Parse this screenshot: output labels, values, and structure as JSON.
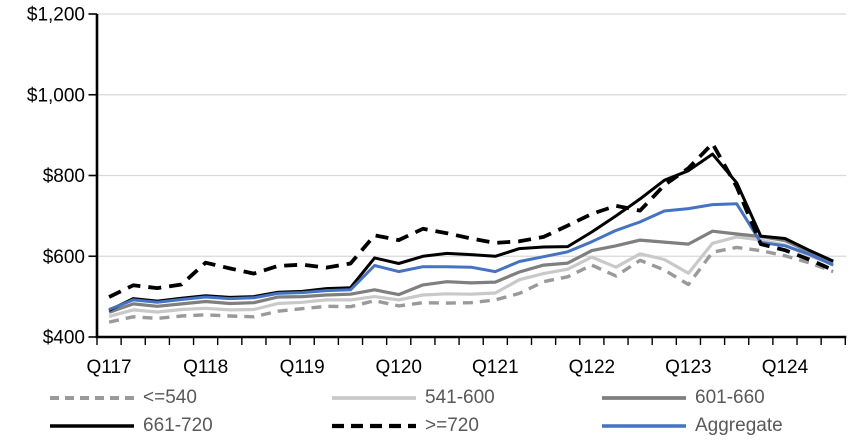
{
  "chart_data": {
    "type": "line",
    "title": "",
    "xlabel": "",
    "ylabel": "",
    "unit": "USD",
    "n_points": 31,
    "x_labels": [
      "Q117",
      "Q118",
      "Q119",
      "Q120",
      "Q121",
      "Q122",
      "Q123",
      "Q124"
    ],
    "x_label_positions": [
      0,
      4,
      8,
      12,
      16,
      20,
      24,
      28
    ],
    "y_axis": {
      "min": 400,
      "max": 1200,
      "tick_values": [
        400,
        600,
        800,
        1000,
        1200
      ],
      "tick_labels": [
        "$400",
        "$600",
        "$800",
        "$1,000",
        "$1,200"
      ]
    },
    "grid": "horizontal",
    "legend_position": "bottom",
    "draw_order": [
      0,
      1,
      2,
      3,
      5,
      4
    ],
    "series": [
      {
        "name": "<=540",
        "color": "#9a9a9a",
        "dash": "dashed",
        "width": 3.4,
        "values": [
          437,
          450,
          446,
          452,
          455,
          452,
          450,
          464,
          470,
          476,
          475,
          490,
          477,
          485,
          484,
          485,
          492,
          508,
          537,
          549,
          578,
          551,
          590,
          566,
          530,
          610,
          622,
          614,
          601,
          584,
          562
        ]
      },
      {
        "name": "541-600",
        "color": "#c9c9c9",
        "dash": "solid",
        "width": 3.2,
        "values": [
          451,
          467,
          462,
          468,
          471,
          467,
          468,
          483,
          486,
          492,
          492,
          500,
          492,
          504,
          507,
          506,
          509,
          542,
          557,
          568,
          598,
          573,
          606,
          592,
          558,
          632,
          648,
          640,
          628,
          601,
          581
        ]
      },
      {
        "name": "601-660",
        "color": "#7f7f7f",
        "dash": "solid",
        "width": 3.2,
        "values": [
          461,
          482,
          476,
          482,
          488,
          483,
          485,
          499,
          500,
          504,
          506,
          517,
          505,
          529,
          537,
          534,
          536,
          561,
          578,
          583,
          614,
          626,
          640,
          635,
          630,
          662,
          655,
          649,
          639,
          611,
          586
        ]
      },
      {
        "name": "661-720",
        "color": "#000000",
        "dash": "solid",
        "width": 3.0,
        "values": [
          466,
          495,
          489,
          496,
          502,
          498,
          500,
          511,
          513,
          520,
          522,
          596,
          582,
          600,
          607,
          604,
          600,
          619,
          623,
          624,
          660,
          700,
          742,
          788,
          812,
          853,
          782,
          650,
          644,
          615,
          588
        ]
      },
      {
        "name": ">=720",
        "color": "#000000",
        "dash": "dashed",
        "width": 3.8,
        "values": [
          499,
          528,
          521,
          530,
          584,
          570,
          557,
          576,
          579,
          572,
          582,
          652,
          640,
          668,
          657,
          644,
          633,
          637,
          648,
          676,
          705,
          725,
          713,
          776,
          818,
          879,
          772,
          630,
          615,
          592,
          566
        ]
      },
      {
        "name": "Aggregate",
        "color": "#4472c4",
        "dash": "solid",
        "width": 3.0,
        "values": [
          468,
          492,
          486,
          493,
          499,
          495,
          497,
          508,
          510,
          515,
          517,
          577,
          562,
          574,
          574,
          573,
          562,
          587,
          599,
          611,
          636,
          664,
          685,
          712,
          718,
          728,
          730,
          634,
          626,
          605,
          578
        ]
      }
    ],
    "style": {
      "gridline_color": "#d9d9d9",
      "axis_color": "#000000",
      "tick_label_color": "#000000",
      "legend_text_color": "#595959",
      "background": "#ffffff"
    }
  }
}
